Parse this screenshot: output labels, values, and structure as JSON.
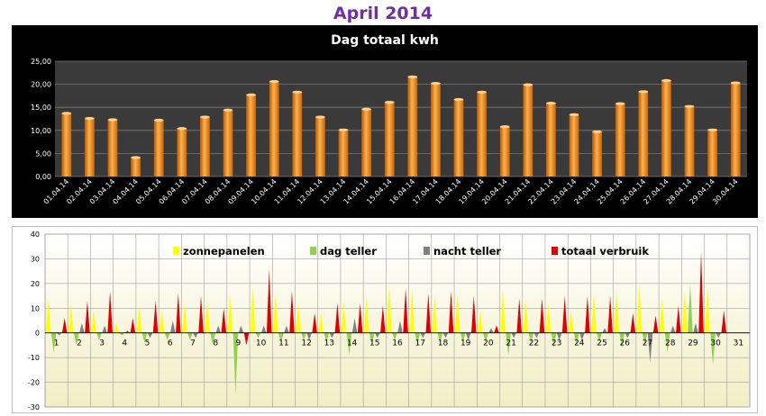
{
  "page": {
    "title": "April 2014"
  },
  "colors": {
    "title_purple": "#7030a0",
    "bar_orange": "#f28a1f",
    "plot_dark": "#3a3a3a",
    "solar_yellow": "#ffff00",
    "day_green": "#92d050",
    "night_gray": "#808080",
    "total_red": "#e00000",
    "plot_cream": "#fcfbe6"
  },
  "chart_data": [
    {
      "type": "bar",
      "title": "Dag totaal kwh",
      "categories": [
        "01.04.14",
        "02.04.14",
        "03.04.14",
        "04.04.14",
        "05.04.14",
        "06.04.14",
        "07.04.14",
        "08.04.14",
        "09.04.14",
        "10.04.14",
        "11.04.14",
        "12.04.14",
        "13.04.14",
        "14.04.14",
        "15.04.14",
        "16.04.14",
        "17.04.14",
        "18.04.14",
        "19.04.14",
        "20.04.14",
        "21.04.14",
        "22.04.14",
        "23.04.14",
        "24.04.14",
        "25.04.14",
        "26.04.14",
        "27.04.14",
        "28.04.14",
        "29.04.14",
        "30.04.14"
      ],
      "values": [
        13.7,
        12.6,
        12.3,
        4.1,
        12.2,
        10.4,
        12.9,
        14.4,
        17.7,
        20.6,
        18.3,
        12.9,
        10.1,
        14.6,
        16.1,
        21.6,
        20.2,
        16.7,
        18.3,
        10.8,
        19.9,
        15.9,
        13.4,
        9.7,
        15.8,
        18.4,
        20.8,
        15.2,
        10.1,
        20.3
      ],
      "yticks": [
        "0,00",
        "5,00",
        "10,00",
        "15,00",
        "20,00",
        "25,00"
      ],
      "ylim": [
        0,
        25
      ],
      "grid": true
    },
    {
      "type": "bar",
      "categories": [
        "1",
        "2",
        "3",
        "4",
        "5",
        "6",
        "7",
        "8",
        "9",
        "10",
        "11",
        "12",
        "13",
        "14",
        "15",
        "16",
        "17",
        "18",
        "19",
        "20",
        "21",
        "22",
        "23",
        "24",
        "25",
        "26",
        "27",
        "28",
        "29",
        "30",
        "31"
      ],
      "yticks": [
        "-30",
        "-20",
        "-10",
        "0",
        "10",
        "20",
        "30",
        "40"
      ],
      "ylim": [
        -30,
        40
      ],
      "grid": true,
      "legend_position": "top",
      "series": [
        {
          "name": "zonnepanelen",
          "color": "#ffff00",
          "values": [
            14,
            12,
            9,
            4,
            11,
            9,
            12,
            13,
            16,
            19,
            16,
            12,
            8,
            13,
            15,
            20,
            18,
            15,
            16,
            9,
            18,
            14,
            12,
            9,
            16,
            17,
            20,
            14,
            17,
            19,
            null
          ]
        },
        {
          "name": "dag teller",
          "color": "#92d050",
          "values": [
            -8,
            -5,
            -3,
            -1,
            -4,
            -3,
            -3,
            -5,
            -25,
            -2,
            -4,
            -3,
            -4,
            -9,
            -5,
            -3,
            -5,
            -4,
            -4,
            -4,
            -9,
            -4,
            -6,
            -5,
            -4,
            -6,
            -5,
            -8,
            20,
            -13,
            null
          ]
        },
        {
          "name": "nacht teller",
          "color": "#808080",
          "values": [
            -1,
            4,
            3,
            1,
            -2,
            5,
            -2,
            3,
            3,
            3,
            3,
            -3,
            -2,
            6,
            -2,
            5,
            -2,
            -2,
            -3,
            2,
            -2,
            -2,
            -3,
            -3,
            2,
            -2,
            -12,
            3,
            4,
            -2,
            null
          ]
        },
        {
          "name": "totaal verbruik",
          "color": "#e00000",
          "values": [
            6,
            13,
            17,
            6,
            13,
            16,
            15,
            10,
            -5,
            26,
            17,
            8,
            12,
            12,
            11,
            18,
            16,
            17,
            15,
            3,
            14,
            14,
            15,
            15,
            15,
            8,
            7,
            11,
            33,
            9,
            null
          ]
        }
      ]
    }
  ]
}
